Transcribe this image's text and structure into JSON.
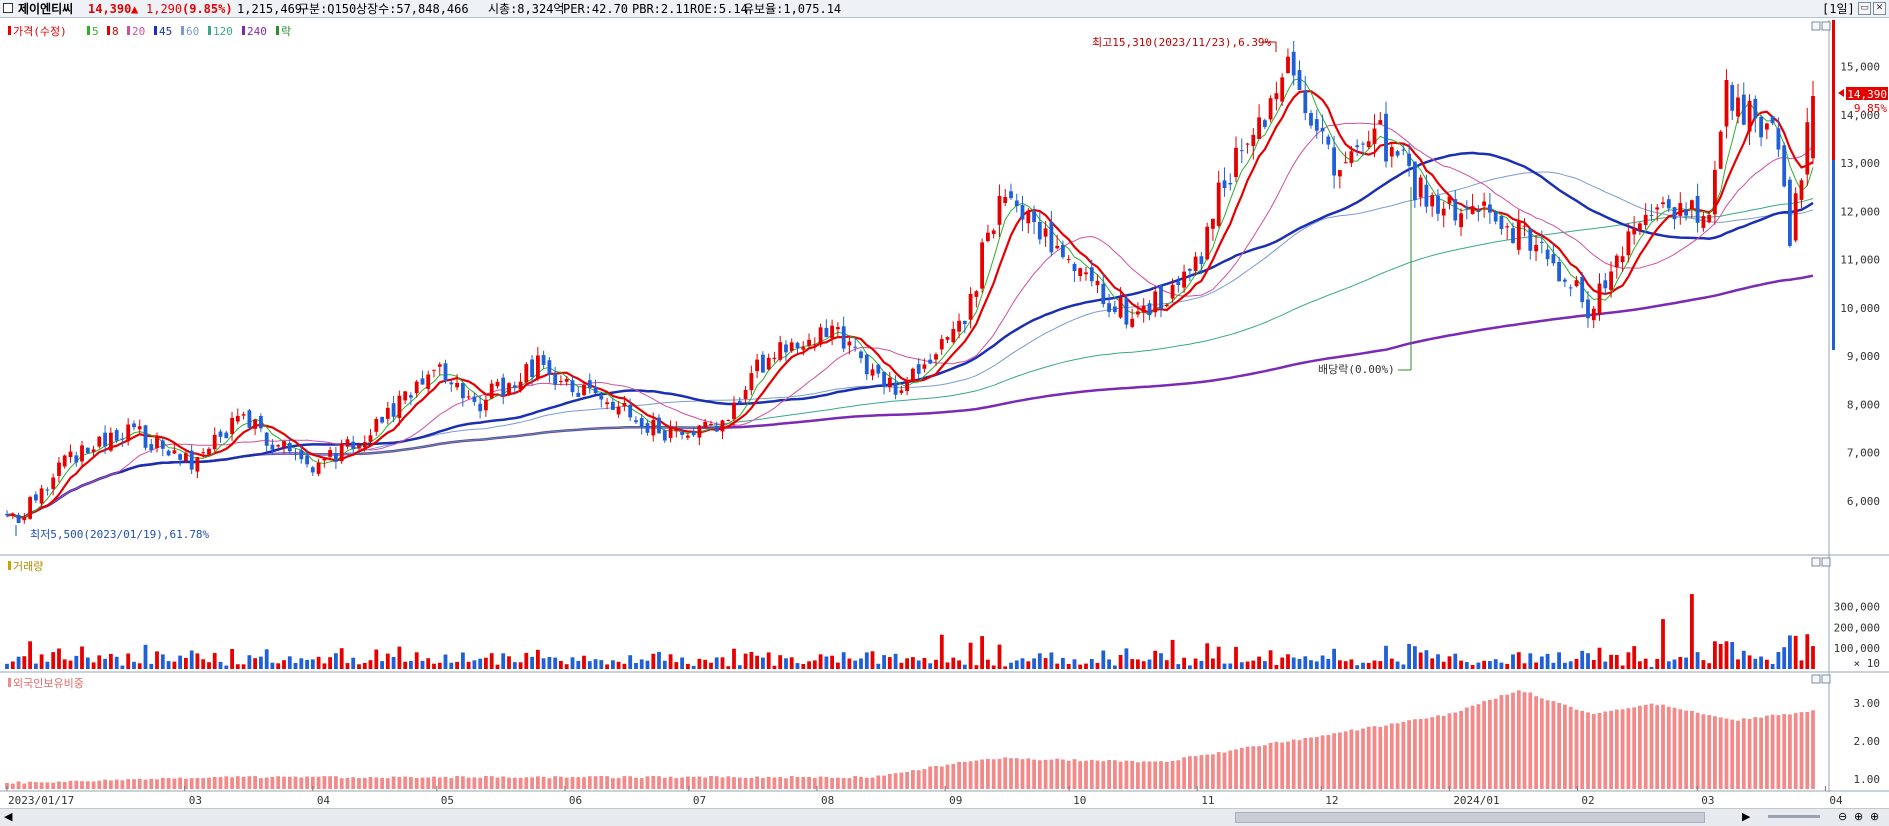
{
  "header": {
    "stock_name": "제이엔티씨",
    "price": "14,390",
    "change_arrow": "▲",
    "change": "1,290",
    "change_pct": "(9.85%)",
    "volume": "1,215,469",
    "market": "구분:Q150",
    "shares": "상장수:57,848,466",
    "market_cap": "시총:8,324억",
    "per": "PER:42.70",
    "pbr": "PBR:2.11",
    "roe": "ROE:5.14",
    "float": "유보율:1,075.14",
    "period": "[1일]"
  },
  "colors": {
    "up": "#e60000",
    "down": "#1f5fd8",
    "ma5": "#2cb02c",
    "ma8": "#e60000",
    "ma20": "#d14fa0",
    "ma45": "#1a2fb3",
    "ma60": "#7b9bd2",
    "ma120": "#3aa88a",
    "ma240": "#7a2bb5",
    "foreign": "#f28a8a"
  },
  "chart_data": [
    {
      "type": "candlestick",
      "title": "가격(수정)",
      "legend": [
        "가격(수정)",
        "5",
        "8",
        "20",
        "45",
        "60",
        "120",
        "240",
        "락"
      ],
      "x_start": "2023/01/17",
      "x_end": "2024/03/29",
      "x_tick_labels": [
        "2023/01/17",
        "03",
        "04",
        "05",
        "06",
        "07",
        "08",
        "09",
        "10",
        "11",
        "12",
        "2024/01",
        "02",
        "03",
        "04"
      ],
      "ylim": [
        5000,
        16000
      ],
      "y_tick_labels": [
        "6,000",
        "7,000",
        "8,000",
        "9,000",
        "10,000",
        "11,000",
        "12,000",
        "13,000",
        "14,000",
        "15,000"
      ],
      "last_price": "14,390",
      "last_change": "9.85%",
      "annotations": {
        "high": "최고15,310(2023/11/23),6.39%",
        "low": "최저5,500(2023/01/19),61.78%",
        "dividend": "배당락(0.00%)"
      },
      "close_anchors": [
        {
          "date": "2023-01-17",
          "close": 5700
        },
        {
          "date": "2023-01-19",
          "close": 5500
        },
        {
          "date": "2023-02-01",
          "close": 6900
        },
        {
          "date": "2023-02-15",
          "close": 7500
        },
        {
          "date": "2023-03-02",
          "close": 6800
        },
        {
          "date": "2023-03-15",
          "close": 7700
        },
        {
          "date": "2023-03-31",
          "close": 6600
        },
        {
          "date": "2023-04-15",
          "close": 7500
        },
        {
          "date": "2023-05-01",
          "close": 8800
        },
        {
          "date": "2023-05-10",
          "close": 8000
        },
        {
          "date": "2023-05-25",
          "close": 8800
        },
        {
          "date": "2023-06-10",
          "close": 8100
        },
        {
          "date": "2023-06-25",
          "close": 7400
        },
        {
          "date": "2023-07-10",
          "close": 7600
        },
        {
          "date": "2023-07-20",
          "close": 9000
        },
        {
          "date": "2023-08-05",
          "close": 9600
        },
        {
          "date": "2023-08-20",
          "close": 8300
        },
        {
          "date": "2023-09-05",
          "close": 9500
        },
        {
          "date": "2023-09-15",
          "close": 12500
        },
        {
          "date": "2023-09-25",
          "close": 11500
        },
        {
          "date": "2023-10-15",
          "close": 9800
        },
        {
          "date": "2023-10-30",
          "close": 10500
        },
        {
          "date": "2023-11-10",
          "close": 13000
        },
        {
          "date": "2023-11-23",
          "close": 15000
        },
        {
          "date": "2023-12-05",
          "close": 13000
        },
        {
          "date": "2023-12-15",
          "close": 13600
        },
        {
          "date": "2023-12-28",
          "close": 12200
        },
        {
          "date": "2024-01-10",
          "close": 12000
        },
        {
          "date": "2024-01-25",
          "close": 11200
        },
        {
          "date": "2024-02-05",
          "close": 10000
        },
        {
          "date": "2024-02-20",
          "close": 12200
        },
        {
          "date": "2024-03-05",
          "close": 12000
        },
        {
          "date": "2024-03-08",
          "close": 14500
        },
        {
          "date": "2024-03-20",
          "close": 13600
        },
        {
          "date": "2024-03-25",
          "close": 11500
        },
        {
          "date": "2024-03-29",
          "close": 14390
        }
      ]
    },
    {
      "type": "bar",
      "title": "거래량",
      "y_tick_labels": [
        "300,000",
        "200,000",
        "100,000"
      ],
      "unit_label": "× 10",
      "ylim": [
        0,
        400000
      ]
    },
    {
      "type": "bar",
      "title": "외국인보유비중",
      "y_tick_labels": [
        "3.00",
        "2.00",
        "1.00"
      ],
      "ylim": [
        0.6,
        3.6
      ]
    }
  ]
}
